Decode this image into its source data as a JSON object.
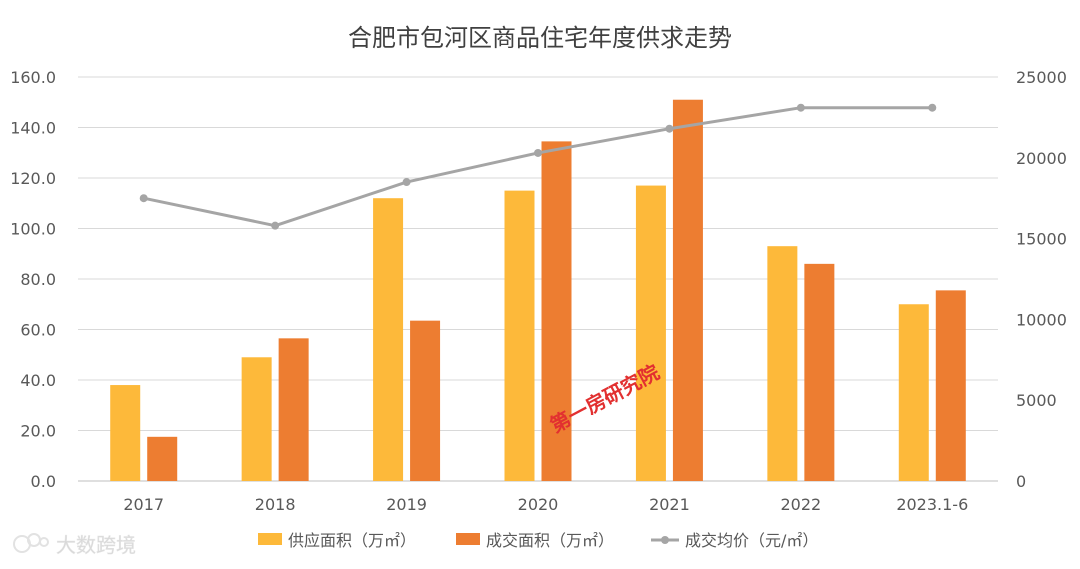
{
  "chart_data": {
    "type": "bar",
    "title": "合肥市包河区商品住宅年度供求走势",
    "categories": [
      "2017",
      "2018",
      "2019",
      "2020",
      "2021",
      "2022",
      "2023.1-6"
    ],
    "series": [
      {
        "name": "供应面积（万㎡）",
        "type": "bar",
        "axis": "left",
        "color": "#FDB93A",
        "values": [
          38.0,
          49.0,
          112.0,
          115.0,
          117.0,
          93.0,
          70.0
        ]
      },
      {
        "name": "成交面积（万㎡）",
        "type": "bar",
        "axis": "left",
        "color": "#ED7D31",
        "values": [
          17.5,
          56.5,
          63.5,
          134.5,
          151.0,
          86.0,
          75.5
        ]
      },
      {
        "name": "成交均价（元/㎡）",
        "type": "line",
        "axis": "right",
        "color": "#A5A5A5",
        "values": [
          17500,
          15800,
          18500,
          20300,
          21800,
          23100,
          23100
        ]
      }
    ],
    "y_left": {
      "ylim": [
        0,
        160
      ],
      "ticks": [
        "0.0",
        "20.0",
        "40.0",
        "60.0",
        "80.0",
        "100.0",
        "120.0",
        "140.0",
        "160.0"
      ]
    },
    "y_right": {
      "ylim": [
        0,
        25000
      ],
      "ticks": [
        "0",
        "5000",
        "10000",
        "15000",
        "20000",
        "25000"
      ]
    },
    "grid": true,
    "legend_position": "bottom"
  },
  "watermarks": {
    "center_text": "第一房研究院",
    "corner_text": "大数跨境"
  }
}
